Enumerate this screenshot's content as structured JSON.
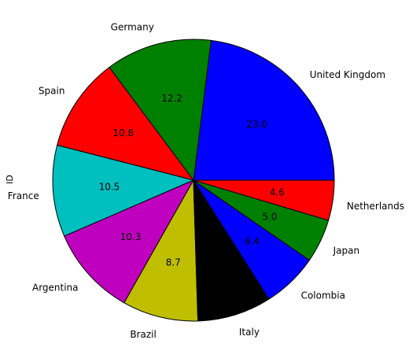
{
  "chart_data": {
    "type": "pie",
    "ylabel": "ID",
    "start_angle_deg": 0,
    "direction": "counterclockwise",
    "slices": [
      {
        "label": "United Kingdom",
        "value": 23.0,
        "value_label": "23.0",
        "color": "#0000ff"
      },
      {
        "label": "Germany",
        "value": 12.2,
        "value_label": "12.2",
        "color": "#008000"
      },
      {
        "label": "Spain",
        "value": 10.8,
        "value_label": "10.8",
        "color": "#ff0000"
      },
      {
        "label": "France",
        "value": 10.5,
        "value_label": "10.5",
        "color": "#00bfbf"
      },
      {
        "label": "Argentina",
        "value": 10.3,
        "value_label": "10.3",
        "color": "#bf00bf"
      },
      {
        "label": "Brazil",
        "value": 8.7,
        "value_label": "8.7",
        "color": "#bfbf00"
      },
      {
        "label": "Italy",
        "value": 8.5,
        "value_label": "",
        "color": "#000000"
      },
      {
        "label": "Colombia",
        "value": 6.4,
        "value_label": "6.4",
        "color": "#0000ff"
      },
      {
        "label": "Japan",
        "value": 5.0,
        "value_label": "5.0",
        "color": "#008000"
      },
      {
        "label": "Netherlands",
        "value": 4.6,
        "value_label": "4.6",
        "color": "#ff0000"
      }
    ]
  }
}
